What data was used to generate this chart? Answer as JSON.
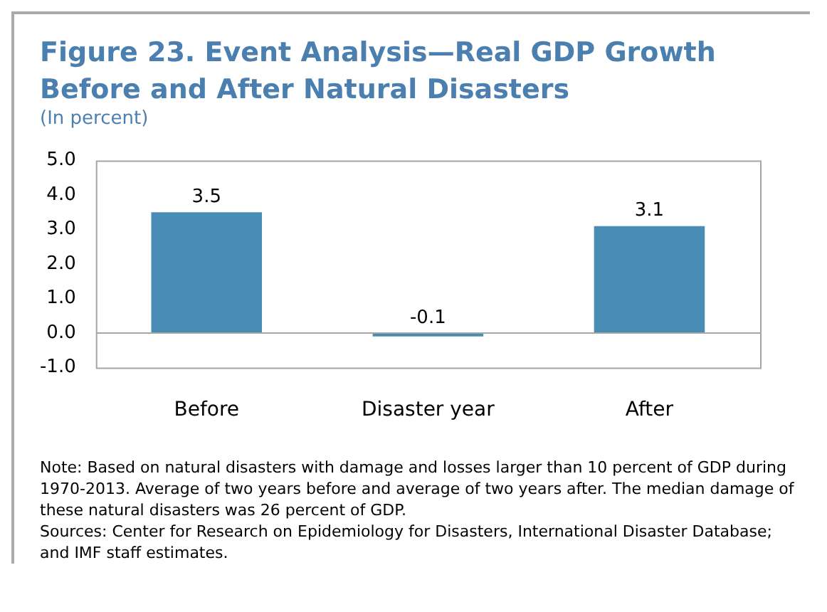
{
  "chart_data": {
    "type": "bar",
    "title": "Figure 23. Event Analysis—Real GDP Growth Before and After Natural Disasters",
    "subtitle": "(In percent)",
    "categories": [
      "Before",
      "Disaster year",
      "After"
    ],
    "values": [
      3.5,
      -0.1,
      3.1
    ],
    "color": "#4a8db4",
    "ylim": [
      -1,
      5
    ],
    "yticks": [
      {
        "value": -1,
        "label": "-1.0"
      },
      {
        "value": 0,
        "label": "0.0"
      },
      {
        "value": 1,
        "label": "1.0"
      },
      {
        "value": 2,
        "label": "2.0"
      },
      {
        "value": 3,
        "label": "3.0"
      },
      {
        "value": 4,
        "label": "4.0"
      },
      {
        "value": 5,
        "label": "5.0"
      }
    ],
    "data_labels": true,
    "legend": false,
    "annotations": [
      "Note: Based on natural disasters with damage and losses larger than 10 percent of GDP during 1970-2013.  Average of two years before and average of two years after. The median damage of these natural disasters was 26 percent of GDP.",
      "Sources: Center for Research on Epidemiology  for Disasters, International Disaster Database; and IMF staff estimates."
    ]
  }
}
